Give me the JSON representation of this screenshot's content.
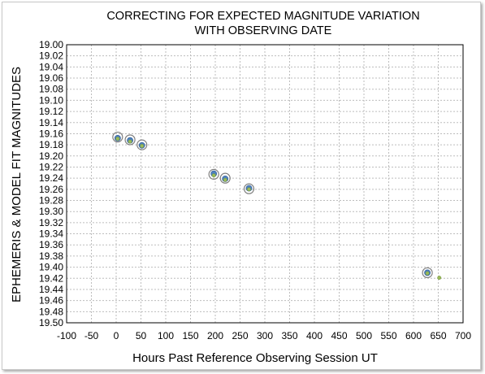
{
  "chart_data": {
    "type": "scatter",
    "title_line1": "CORRECTING FOR EXPECTED MAGNITUDE VARIATION",
    "title_line2": "WITH OBSERVING DATE",
    "xlabel": "Hours Past Reference Observing Session UT",
    "ylabel": "EPHEMERIS & MODEL FIT MAGNITUDES",
    "xlim": [
      -100,
      700
    ],
    "xstep": 50,
    "ylim": [
      19.0,
      19.5
    ],
    "ystep": 0.02,
    "y_inverted": true,
    "grid": true,
    "colors": {
      "measured_ring": "#7f7f7f",
      "ephemeris_fill": "#4f81bd",
      "model_fill": "#9bbb59"
    },
    "series": [
      {
        "marker": "open-circle",
        "points": [
          {
            "x": 3,
            "y": 19.166
          },
          {
            "x": 28,
            "y": 19.171
          },
          {
            "x": 52,
            "y": 19.18
          },
          {
            "x": 197,
            "y": 19.233
          },
          {
            "x": 220,
            "y": 19.24
          },
          {
            "x": 268,
            "y": 19.259
          },
          {
            "x": 628,
            "y": 19.41
          }
        ]
      },
      {
        "marker": "filled-circle",
        "points": [
          {
            "x": 3,
            "y": 19.168
          },
          {
            "x": 28,
            "y": 19.172
          },
          {
            "x": 52,
            "y": 19.181
          },
          {
            "x": 197,
            "y": 19.232
          },
          {
            "x": 220,
            "y": 19.241
          },
          {
            "x": 268,
            "y": 19.258
          },
          {
            "x": 628,
            "y": 19.41
          }
        ]
      },
      {
        "marker": "small-circle",
        "points": [
          {
            "x": 3,
            "y": 19.169
          },
          {
            "x": 28,
            "y": 19.174
          },
          {
            "x": 52,
            "y": 19.182
          },
          {
            "x": 197,
            "y": 19.235
          },
          {
            "x": 220,
            "y": 19.243
          },
          {
            "x": 268,
            "y": 19.26
          },
          {
            "x": 628,
            "y": 19.411
          },
          {
            "x": 652,
            "y": 19.419
          }
        ]
      }
    ]
  }
}
